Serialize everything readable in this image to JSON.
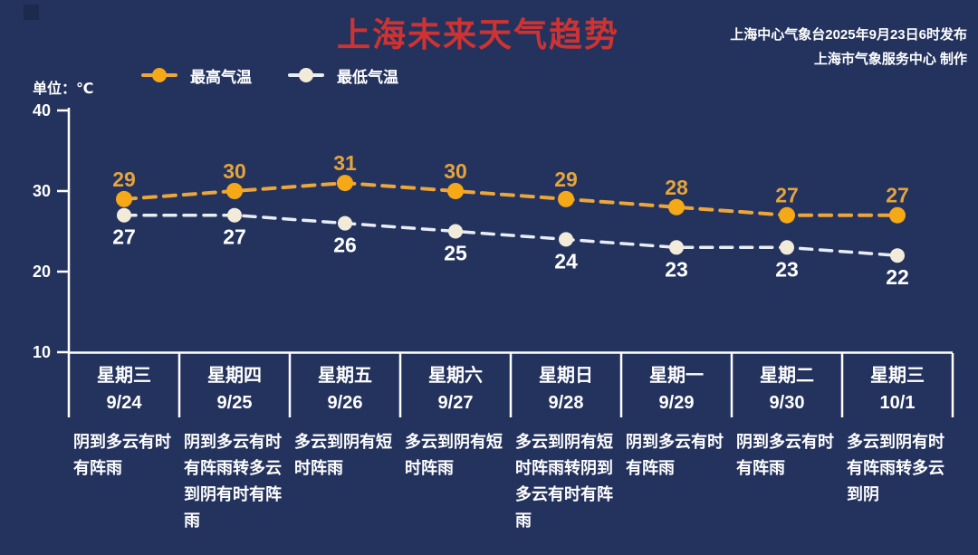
{
  "title": "上海未来天气趋势",
  "source": {
    "line1": "上海中心气象台2025年9月23日6时发布",
    "line2": "上海市气象服务中心 制作"
  },
  "legend": {
    "max_label": "最高气温",
    "min_label": "最低气温"
  },
  "colors": {
    "background": "#24335E",
    "title": "#CE3333",
    "max_line": "#ECA63A",
    "max_dot": "#F5A917",
    "max_value_label": "#E5A43C",
    "min_line": "#E8EDF5",
    "min_dot": "#F3EBDA",
    "min_value_label": "#FFFFFF",
    "axis": "#FFFFFF"
  },
  "chart_data": {
    "type": "line",
    "title": "上海未来天气趋势",
    "ylabel": "单位：℃",
    "ylim": [
      10,
      40
    ],
    "yticks": [
      40,
      30,
      20,
      10
    ],
    "grid": false,
    "legend_position": "top-left",
    "weekdays": [
      "星期三",
      "星期四",
      "星期五",
      "星期六",
      "星期日",
      "星期一",
      "星期二",
      "星期三"
    ],
    "dates": [
      "9/24",
      "9/25",
      "9/26",
      "9/27",
      "9/28",
      "9/29",
      "9/30",
      "10/1"
    ],
    "series": [
      {
        "name": "最高气温",
        "values": [
          29,
          30,
          31,
          30,
          29,
          28,
          27,
          27
        ]
      },
      {
        "name": "最低气温",
        "values": [
          27,
          27,
          26,
          25,
          24,
          23,
          23,
          22
        ]
      }
    ],
    "weather": [
      "阴到多云有时\n有阵雨",
      "阴到多云有时\n有阵雨转多云\n到阴有时有阵\n雨",
      "多云到阴有短\n时阵雨",
      "多云到阴有短\n时阵雨",
      "多云到阴有短\n时阵雨转阴到\n多云有时有阵\n雨",
      "阴到多云有时\n有阵雨",
      "阴到多云有时\n有阵雨",
      "多云到阴有时\n有阵雨转多云\n到阴"
    ]
  }
}
